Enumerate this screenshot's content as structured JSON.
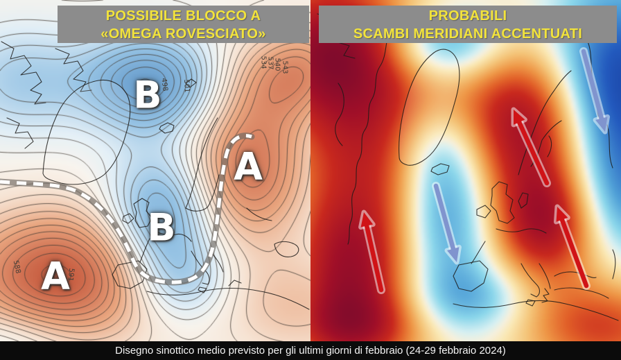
{
  "caption": "Disegno sinottico medio previsto per gli ultimi giorni di febbraio (24-29 febbraio 2024)",
  "left_panel": {
    "title_line1": "POSSIBILE BLOCCO A",
    "title_line2": "«OMEGA ROVESCIATO»",
    "pressure_labels": [
      {
        "text": "B"
      },
      {
        "text": "A"
      },
      {
        "text": "B"
      },
      {
        "text": "A"
      }
    ],
    "contour_labels": [
      {
        "text": "534"
      },
      {
        "text": "537"
      },
      {
        "text": "540"
      },
      {
        "text": "543"
      },
      {
        "text": "498"
      },
      {
        "text": "501"
      },
      {
        "text": "588"
      },
      {
        "text": "591"
      }
    ]
  },
  "right_panel": {
    "title_line1": "PROBABILI",
    "title_line2": "SCAMBI MERIDIANI ACCENTUATI",
    "arrows": [
      {
        "name": "warm-advection-arrow-atlantic",
        "direction": "up",
        "color": "red"
      },
      {
        "name": "warm-advection-arrow-scandinavia",
        "direction": "up",
        "color": "red"
      },
      {
        "name": "warm-advection-arrow-black-sea",
        "direction": "up",
        "color": "red"
      },
      {
        "name": "cold-advection-arrow-iberia",
        "direction": "down",
        "color": "blue"
      },
      {
        "name": "cold-advection-arrow-russia",
        "direction": "down",
        "color": "blue"
      }
    ]
  },
  "colors": {
    "title_bg": "#8c8c8c",
    "title_fg": "#f2e33c",
    "caption_bg": "#0b0b0b",
    "caption_fg": "#f5f5f5",
    "arrow_red": "#d01317",
    "arrow_blue": "#8094ce",
    "jet_color": "#ffffff",
    "letter_color": "#ffffff",
    "coast_color": "#1c1a17",
    "contour_label_color": "#423d36"
  }
}
